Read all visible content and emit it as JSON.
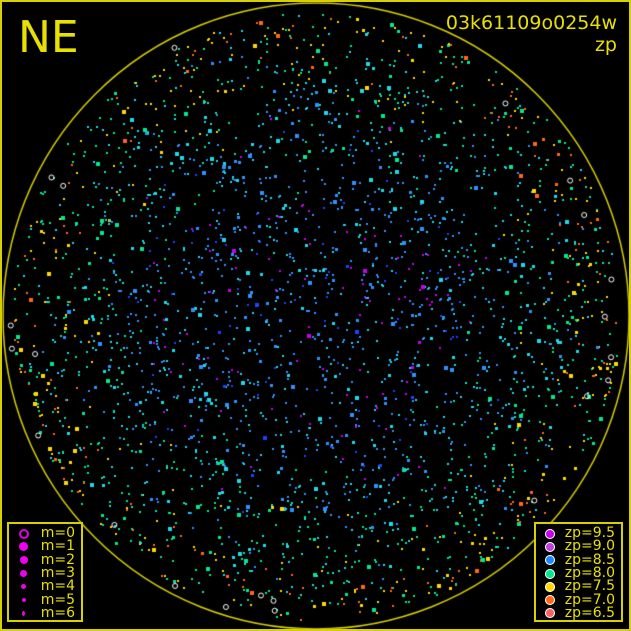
{
  "direction_label": "NE",
  "observation": {
    "id": "03k61109o0254w",
    "mode": "zp"
  },
  "magnitude_legend": [
    {
      "label": "m=0",
      "hollow": true
    },
    {
      "label": "m=1"
    },
    {
      "label": "m=2"
    },
    {
      "label": "m=3"
    },
    {
      "label": "m=4"
    },
    {
      "label": "m=5"
    },
    {
      "label": "m=6"
    }
  ],
  "zp_legend": [
    {
      "label": "zp=9.5",
      "color": "#c800f0"
    },
    {
      "label": "zp=9.0",
      "color": "#c040e0"
    },
    {
      "label": "zp=8.5",
      "color": "#2088ff"
    },
    {
      "label": "zp=8.0",
      "color": "#00e890"
    },
    {
      "label": "zp=7.5",
      "color": "#ffd800"
    },
    {
      "label": "zp=7.0",
      "color": "#ff6818"
    },
    {
      "label": "zp=6.5",
      "color": "#ff6060"
    }
  ],
  "colors": {
    "frame": "#d8d000",
    "text": "#e8e000",
    "background": "#000000"
  }
}
